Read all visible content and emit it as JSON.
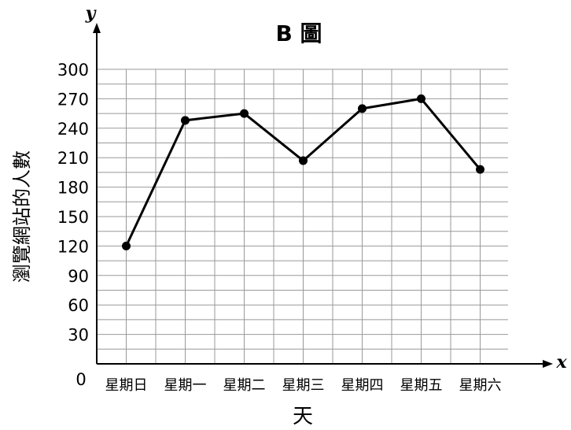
{
  "chart_data": {
    "type": "line",
    "title": "B 圖",
    "xlabel": "天",
    "ylabel": "瀏覽網站的人數",
    "x_axis_symbol": "x",
    "y_axis_symbol": "y",
    "origin_label": "0",
    "categories": [
      "星期日",
      "星期一",
      "星期二",
      "星期三",
      "星期四",
      "星期五",
      "星期六"
    ],
    "values": [
      120,
      248,
      255,
      207,
      260,
      270,
      198
    ],
    "yticks": [
      "30",
      "60",
      "90",
      "120",
      "150",
      "180",
      "210",
      "240",
      "270",
      "300"
    ],
    "ylim": [
      0,
      300
    ],
    "grid": true,
    "colors": {
      "line": "#000000",
      "grid": "#999999",
      "axis": "#000000"
    }
  }
}
